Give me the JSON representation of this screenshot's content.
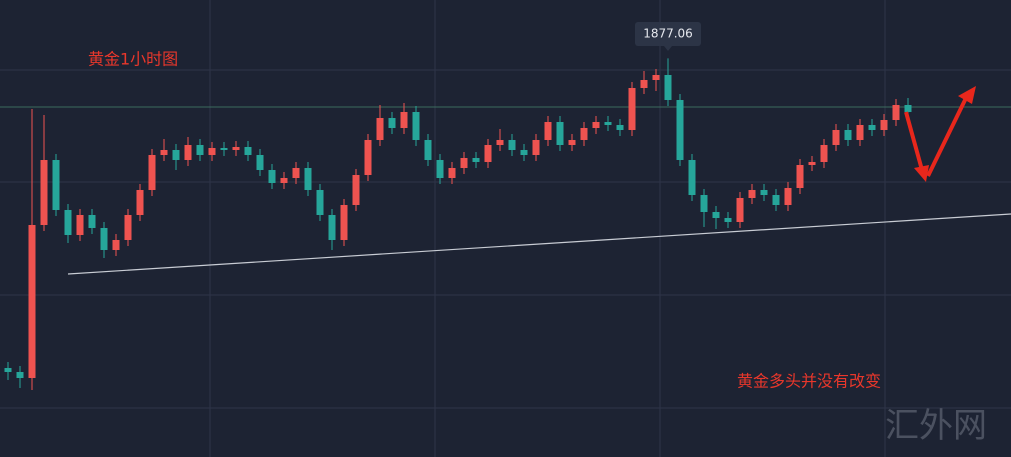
{
  "chart_data": {
    "type": "candlestick",
    "title": "黄金1小时图",
    "annotation": "黄金多头并没有改变",
    "watermark": "汇外网",
    "up_color": "#ef5350",
    "down_color": "#26a69a",
    "ylim": [
      1837.2,
      1882.9
    ],
    "open": [
      1846.1,
      1845.7,
      1845.1,
      1860.4,
      1866.9,
      1861.9,
      1859.4,
      1861.4,
      1860.1,
      1857.9,
      1858.9,
      1861.4,
      1863.9,
      1867.4,
      1867.9,
      1866.9,
      1868.4,
      1867.4,
      1868.1,
      1867.9,
      1868.2,
      1867.4,
      1865.9,
      1864.6,
      1865.1,
      1866.1,
      1863.9,
      1861.4,
      1858.9,
      1862.4,
      1865.4,
      1868.9,
      1871.1,
      1870.1,
      1871.7,
      1868.9,
      1866.9,
      1865.1,
      1866.1,
      1867.1,
      1866.7,
      1868.4,
      1868.9,
      1867.9,
      1867.4,
      1868.9,
      1870.7,
      1868.4,
      1868.9,
      1870.1,
      1870.7,
      1870.4,
      1869.9,
      1874.1,
      1874.9,
      1875.4,
      1872.9,
      1866.9,
      1863.4,
      1861.7,
      1861.1,
      1860.7,
      1863.1,
      1863.9,
      1863.4,
      1862.4,
      1864.1,
      1866.4,
      1866.7,
      1868.4,
      1869.9,
      1868.9,
      1870.4,
      1869.9,
      1870.9,
      1872.4
    ],
    "high": [
      1846.7,
      1846.3,
      1872.0,
      1871.4,
      1867.5,
      1862.5,
      1862.0,
      1862.0,
      1860.7,
      1859.5,
      1862.0,
      1864.5,
      1868.0,
      1869.0,
      1868.5,
      1869.2,
      1869.0,
      1868.7,
      1868.7,
      1868.8,
      1868.8,
      1868.0,
      1866.5,
      1865.7,
      1866.7,
      1866.7,
      1864.5,
      1862.0,
      1863.0,
      1866.0,
      1869.5,
      1872.4,
      1871.7,
      1872.6,
      1872.3,
      1869.5,
      1867.5,
      1866.7,
      1867.7,
      1867.7,
      1869.0,
      1870.0,
      1869.5,
      1868.5,
      1869.5,
      1871.3,
      1871.3,
      1869.5,
      1870.7,
      1871.3,
      1871.3,
      1871.0,
      1874.7,
      1875.8,
      1876.0,
      1877.06,
      1873.5,
      1867.5,
      1864.0,
      1862.3,
      1861.7,
      1863.7,
      1864.5,
      1864.5,
      1864.0,
      1864.7,
      1867.0,
      1867.3,
      1869.0,
      1870.5,
      1870.5,
      1871.0,
      1871.0,
      1871.5,
      1873.0,
      1873.1
    ],
    "low": [
      1844.9,
      1844.1,
      1843.9,
      1859.8,
      1861.3,
      1858.6,
      1858.8,
      1859.5,
      1857.1,
      1857.3,
      1858.3,
      1860.8,
      1863.3,
      1866.8,
      1865.9,
      1866.3,
      1866.8,
      1866.8,
      1867.3,
      1867.3,
      1866.8,
      1865.3,
      1864.0,
      1864.0,
      1864.5,
      1863.3,
      1860.8,
      1857.9,
      1858.3,
      1861.8,
      1864.8,
      1868.3,
      1869.5,
      1869.5,
      1868.3,
      1866.3,
      1864.5,
      1864.5,
      1865.5,
      1866.1,
      1866.1,
      1867.8,
      1867.3,
      1866.8,
      1866.8,
      1868.3,
      1867.8,
      1867.8,
      1868.3,
      1869.5,
      1869.8,
      1869.3,
      1869.3,
      1873.5,
      1873.8,
      1872.3,
      1866.3,
      1862.8,
      1860.2,
      1860.0,
      1860.1,
      1860.1,
      1862.5,
      1862.8,
      1861.8,
      1861.8,
      1863.5,
      1865.8,
      1866.1,
      1867.8,
      1868.3,
      1868.3,
      1869.3,
      1869.3,
      1870.3,
      1871.1
    ],
    "close": [
      1845.7,
      1845.1,
      1860.4,
      1866.9,
      1861.9,
      1859.4,
      1861.4,
      1860.1,
      1857.9,
      1858.9,
      1861.4,
      1863.9,
      1867.4,
      1867.9,
      1866.9,
      1868.4,
      1867.4,
      1868.1,
      1867.9,
      1868.2,
      1867.4,
      1865.9,
      1864.6,
      1865.1,
      1866.1,
      1863.9,
      1861.4,
      1858.9,
      1862.4,
      1865.4,
      1868.9,
      1871.1,
      1870.1,
      1871.7,
      1868.9,
      1866.9,
      1865.1,
      1866.1,
      1867.1,
      1866.7,
      1868.4,
      1868.9,
      1867.9,
      1867.4,
      1868.9,
      1870.7,
      1868.4,
      1868.9,
      1870.1,
      1870.7,
      1870.4,
      1869.9,
      1874.1,
      1874.9,
      1875.4,
      1872.9,
      1866.9,
      1863.4,
      1861.7,
      1861.1,
      1860.7,
      1863.1,
      1863.9,
      1863.4,
      1862.4,
      1864.1,
      1866.4,
      1866.7,
      1868.4,
      1869.9,
      1868.9,
      1870.4,
      1869.9,
      1870.9,
      1872.4,
      1871.7
    ]
  }
}
